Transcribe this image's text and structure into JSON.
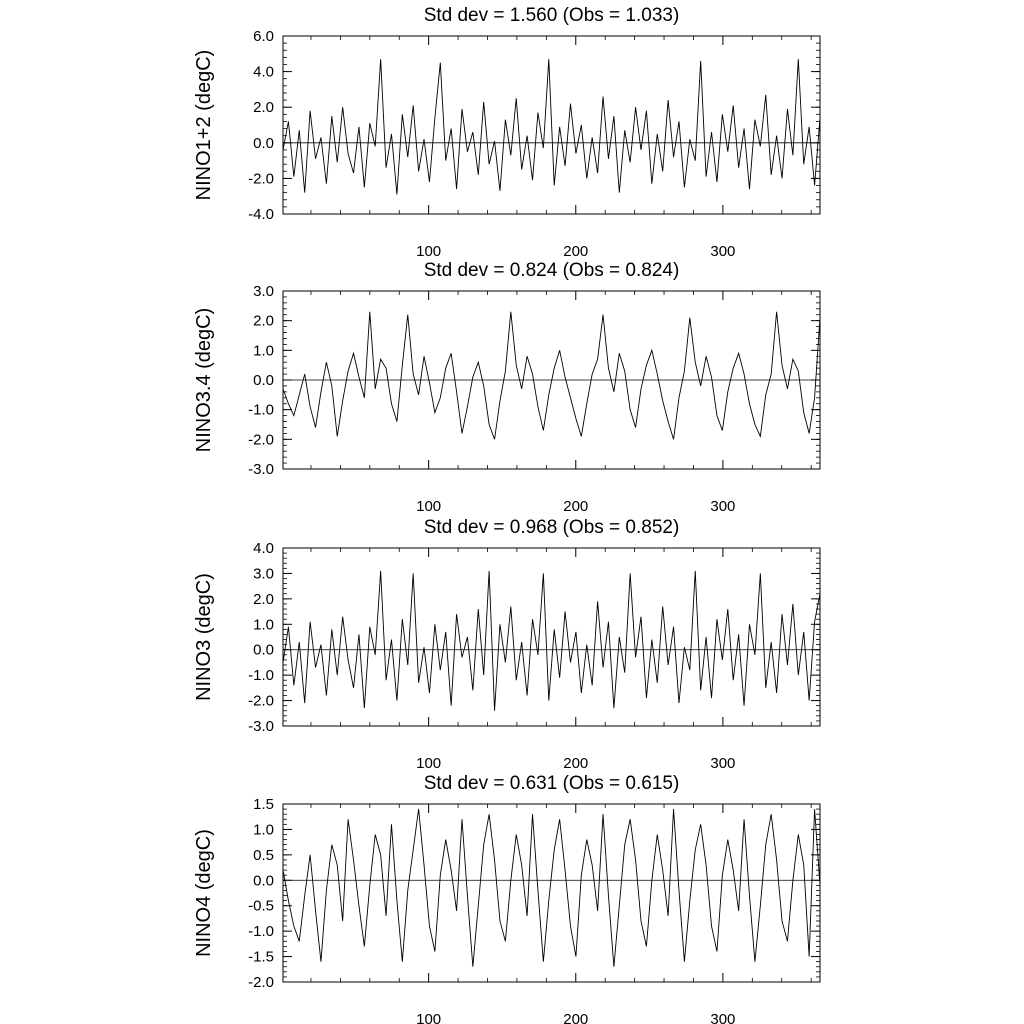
{
  "chart_data": [
    {
      "type": "line",
      "title": "Std dev = 1.560 (Obs = 1.033)",
      "ylabel": "NINO1+2 (degC)",
      "xlabel": "",
      "xlim": [
        1,
        366
      ],
      "ylim": [
        -4.0,
        6.0
      ],
      "y_ticks": [
        "6.0",
        "4.0",
        "2.0",
        "0.0",
        "-2.0",
        "-4.0"
      ],
      "y_tick_values": [
        6.0,
        4.0,
        2.0,
        0.0,
        -2.0,
        -4.0
      ],
      "x_ticks": [
        "100",
        "200",
        "300"
      ],
      "x_tick_values": [
        100,
        200,
        300
      ],
      "std_dev": 1.56,
      "obs_std_dev": 1.033,
      "series": [
        {
          "values": [
            -0.4,
            1.2,
            -1.9,
            0.7,
            -2.8,
            1.8,
            -0.9,
            0.3,
            -2.3,
            1.5,
            -1.1,
            2.0,
            -0.6,
            -1.7,
            0.9,
            -2.5,
            1.1,
            -0.2,
            4.7,
            -1.4,
            0.5,
            -2.9,
            1.6,
            -0.8,
            2.1,
            -1.6,
            0.2,
            -2.2,
            1.4,
            4.5,
            -1.0,
            0.8,
            -2.6,
            1.9,
            -0.5,
            0.6,
            -1.8,
            2.3,
            -1.2,
            0.1,
            -2.7,
            1.3,
            -0.7,
            2.5,
            -1.5,
            0.4,
            -2.1,
            1.7,
            -0.3,
            4.7,
            -2.4,
            0.9,
            -1.3,
            2.2,
            -0.6,
            1.0,
            -2.0,
            0.3,
            -1.7,
            2.6,
            -0.9,
            1.5,
            -2.8,
            0.7,
            -1.1,
            2.0,
            -0.4,
            1.8,
            -2.3,
            0.5,
            -1.6,
            2.4,
            -0.8,
            1.2,
            -2.5,
            0.2,
            -1.0,
            4.6,
            -1.9,
            0.6,
            -2.2,
            1.6,
            -0.5,
            2.1,
            -1.4,
            0.8,
            -2.6,
            1.3,
            -0.2,
            2.7,
            -1.8,
            0.4,
            -2.0,
            1.9,
            -0.7,
            4.7,
            -1.2,
            0.9,
            -2.4,
            1.4
          ]
        }
      ]
    },
    {
      "type": "line",
      "title": "Std dev = 0.824 (Obs = 0.824)",
      "ylabel": "NINO3.4 (degC)",
      "xlabel": "",
      "xlim": [
        1,
        366
      ],
      "ylim": [
        -3.0,
        3.0
      ],
      "y_ticks": [
        "3.0",
        "2.0",
        "1.0",
        "0.0",
        "-1.0",
        "-2.0",
        "-3.0"
      ],
      "y_tick_values": [
        3.0,
        2.0,
        1.0,
        0.0,
        -1.0,
        -2.0,
        -3.0
      ],
      "x_ticks": [
        "100",
        "200",
        "300"
      ],
      "x_tick_values": [
        100,
        200,
        300
      ],
      "std_dev": 0.824,
      "obs_std_dev": 0.824,
      "series": [
        {
          "values": [
            -0.3,
            -0.8,
            -1.2,
            -0.5,
            0.2,
            -0.9,
            -1.6,
            -0.4,
            0.6,
            -0.2,
            -1.9,
            -0.7,
            0.3,
            0.9,
            0.1,
            -0.6,
            2.3,
            -0.3,
            0.7,
            0.4,
            -0.8,
            -1.4,
            0.5,
            2.2,
            0.2,
            -0.5,
            0.8,
            -0.1,
            -1.1,
            -0.6,
            0.4,
            0.9,
            -0.4,
            -1.8,
            -0.9,
            0.1,
            0.6,
            -0.2,
            -1.5,
            -2.0,
            -0.7,
            0.3,
            2.3,
            0.5,
            -0.3,
            0.8,
            0.2,
            -0.9,
            -1.7,
            -0.5,
            0.4,
            1.0,
            0.1,
            -0.6,
            -1.3,
            -1.9,
            -0.8,
            0.2,
            0.7,
            2.2,
            0.4,
            -0.4,
            0.9,
            0.3,
            -1.0,
            -1.6,
            -0.3,
            0.5,
            1.0,
            0.2,
            -0.7,
            -1.4,
            -2.0,
            -0.6,
            0.3,
            2.1,
            0.6,
            -0.2,
            0.8,
            0.1,
            -1.2,
            -1.7,
            -0.4,
            0.4,
            0.9,
            0.2,
            -0.8,
            -1.5,
            -1.9,
            -0.5,
            0.2,
            2.3,
            0.5,
            -0.3,
            0.7,
            0.3,
            -1.1,
            -1.8,
            -0.6,
            2.1
          ]
        }
      ]
    },
    {
      "type": "line",
      "title": "Std dev = 0.968 (Obs = 0.852)",
      "ylabel": "NINO3 (degC)",
      "xlabel": "",
      "xlim": [
        1,
        366
      ],
      "ylim": [
        -3.0,
        4.0
      ],
      "y_ticks": [
        "4.0",
        "3.0",
        "2.0",
        "1.0",
        "0.0",
        "-1.0",
        "-2.0",
        "-3.0"
      ],
      "y_tick_values": [
        4.0,
        3.0,
        2.0,
        1.0,
        0.0,
        -1.0,
        -2.0,
        -3.0
      ],
      "x_ticks": [
        "100",
        "200",
        "300"
      ],
      "x_tick_values": [
        100,
        200,
        300
      ],
      "std_dev": 0.968,
      "obs_std_dev": 0.852,
      "series": [
        {
          "values": [
            -0.5,
            0.9,
            -1.4,
            0.3,
            -2.1,
            1.1,
            -0.7,
            0.2,
            -1.8,
            0.8,
            -1.0,
            1.3,
            -0.4,
            -1.5,
            0.6,
            -2.3,
            0.9,
            -0.2,
            3.1,
            -1.2,
            0.4,
            -2.0,
            1.2,
            -0.6,
            3.0,
            -1.3,
            0.1,
            -1.7,
            1.0,
            -0.8,
            0.7,
            -2.2,
            1.4,
            -0.3,
            0.5,
            -1.6,
            1.6,
            -1.0,
            3.1,
            -2.4,
            1.0,
            -0.5,
            1.7,
            -1.2,
            0.3,
            -1.8,
            1.2,
            -0.2,
            3.0,
            -2.0,
            0.8,
            -1.1,
            1.5,
            -0.5,
            0.7,
            -1.7,
            0.2,
            -1.4,
            1.9,
            -0.7,
            1.1,
            -2.3,
            0.5,
            -0.9,
            3.0,
            -0.3,
            1.3,
            -1.9,
            0.4,
            -1.3,
            1.7,
            -0.6,
            0.9,
            -2.1,
            0.1,
            -0.8,
            3.1,
            -1.6,
            0.5,
            -1.9,
            1.2,
            -0.4,
            1.6,
            -1.2,
            0.6,
            -2.2,
            1.0,
            -0.2,
            3.0,
            -1.5,
            0.3,
            -1.7,
            1.4,
            -0.6,
            1.8,
            -1.0,
            0.7,
            -2.0,
            1.1,
            2.2
          ]
        }
      ]
    },
    {
      "type": "line",
      "title": "Std dev = 0.631 (Obs = 0.615)",
      "ylabel": "NINO4 (degC)",
      "xlabel": "",
      "xlim": [
        1,
        366
      ],
      "ylim": [
        -2.0,
        1.5
      ],
      "y_ticks": [
        "1.5",
        "1.0",
        "0.5",
        "0.0",
        "-0.5",
        "-1.0",
        "-1.5",
        "-2.0"
      ],
      "y_tick_values": [
        1.5,
        1.0,
        0.5,
        0.0,
        -0.5,
        -1.0,
        -1.5,
        -2.0
      ],
      "x_ticks": [
        "100",
        "200",
        "300"
      ],
      "x_tick_values": [
        100,
        200,
        300
      ],
      "std_dev": 0.631,
      "obs_std_dev": 0.615,
      "series": [
        {
          "values": [
            0.2,
            -0.4,
            -0.9,
            -1.2,
            -0.3,
            0.5,
            -0.6,
            -1.6,
            -0.2,
            0.7,
            0.3,
            -0.8,
            1.2,
            0.4,
            -0.5,
            -1.3,
            -0.1,
            0.9,
            0.5,
            -0.7,
            1.1,
            -0.4,
            -1.6,
            -0.2,
            0.6,
            1.4,
            0.3,
            -0.9,
            -1.4,
            0.1,
            0.8,
            0.2,
            -0.6,
            1.2,
            -0.3,
            -1.7,
            -0.5,
            0.7,
            1.3,
            0.4,
            -0.8,
            -1.2,
            0.0,
            0.9,
            0.3,
            -0.7,
            1.3,
            -0.2,
            -1.6,
            -0.4,
            0.6,
            1.2,
            0.2,
            -0.9,
            -1.5,
            0.1,
            0.8,
            0.3,
            -0.6,
            1.3,
            -0.3,
            -1.7,
            -0.5,
            0.7,
            1.2,
            0.4,
            -0.8,
            -1.3,
            0.0,
            0.9,
            0.2,
            -0.7,
            1.4,
            -0.2,
            -1.6,
            -0.4,
            0.6,
            1.1,
            0.3,
            -0.9,
            -1.4,
            0.1,
            0.8,
            0.2,
            -0.6,
            1.2,
            -0.3,
            -1.6,
            -0.5,
            0.7,
            1.3,
            0.4,
            -0.8,
            -1.2,
            0.0,
            0.9,
            0.3,
            -1.5,
            1.4,
            -0.1
          ]
        }
      ]
    }
  ]
}
